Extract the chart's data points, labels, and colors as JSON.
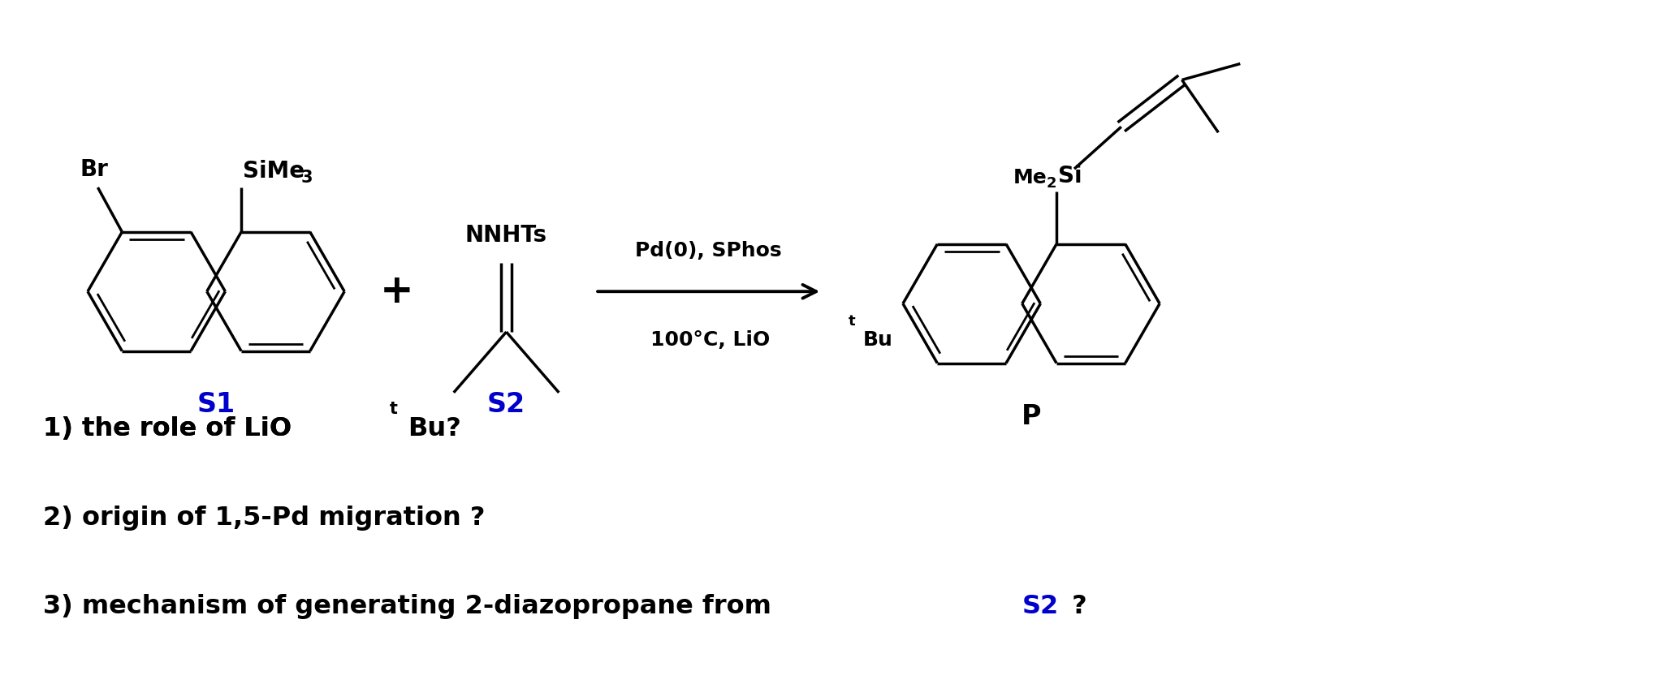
{
  "bg_color": "#ffffff",
  "blue_color": "#0000cc",
  "label_s1": "S1",
  "label_s2": "S2",
  "label_p": "P",
  "arrow_text1": "Pd(0), SPhos",
  "q2": "2) origin of 1,5-Pd migration ?",
  "q3a": "3) mechanism of generating 2-diazopropane from ",
  "q3b": "S2",
  "figsize": [
    20.48,
    8.59
  ],
  "dpi": 100
}
